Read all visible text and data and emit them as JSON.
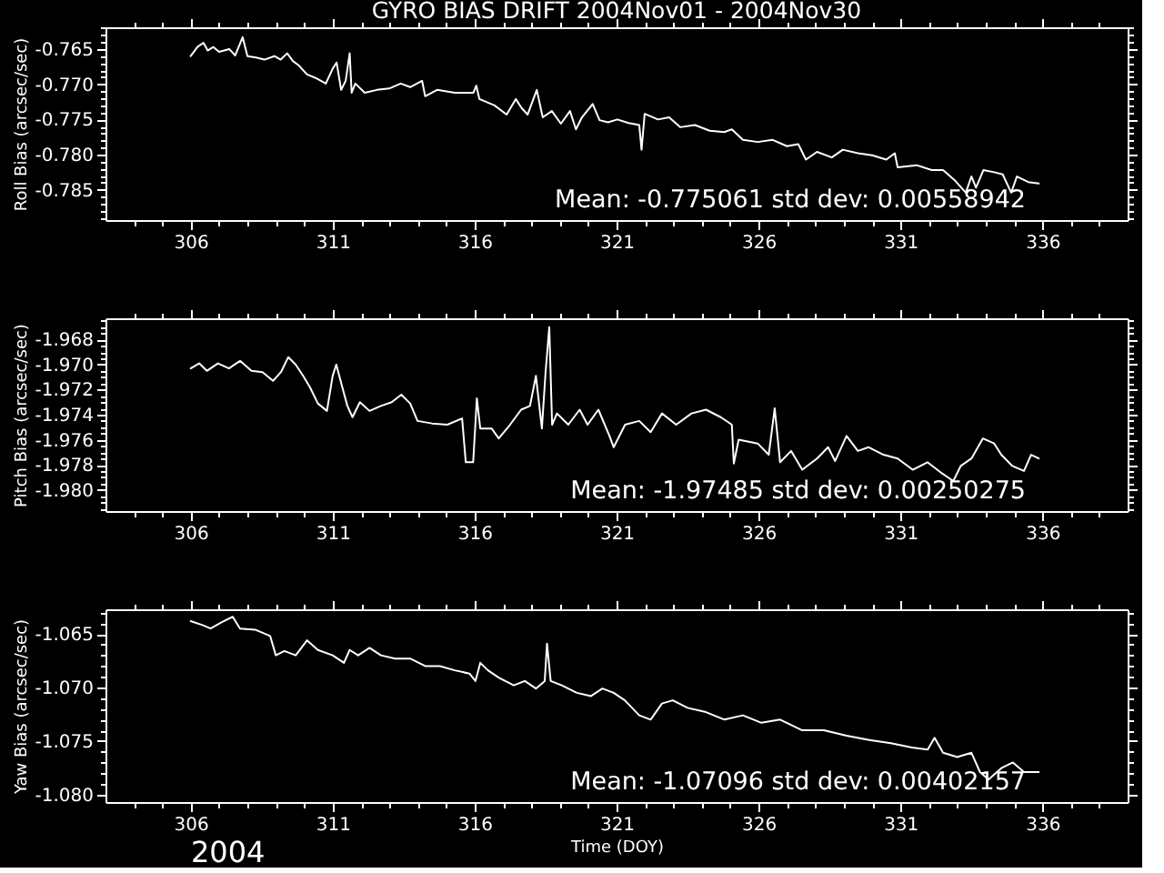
{
  "chart_data": [
    {
      "type": "line",
      "title": "GYRO BIAS DRIFT 2004Nov01 - 2004Nov30",
      "ylabel": "Roll Bias (arcsec/sec)",
      "x": [
        306.0,
        306.24,
        306.45,
        306.6,
        306.8,
        307.0,
        307.36,
        307.57,
        307.83,
        308.0,
        308.3,
        308.6,
        308.95,
        309.17,
        309.4,
        309.6,
        309.8,
        310.1,
        310.4,
        310.76,
        311.0,
        311.14,
        311.3,
        311.46,
        311.6,
        311.67,
        311.8,
        312.13,
        312.56,
        312.99,
        313.4,
        313.73,
        314.15,
        314.26,
        314.68,
        315.3,
        315.96,
        316.06,
        316.17,
        316.7,
        317.13,
        317.45,
        317.66,
        317.87,
        318.19,
        318.4,
        318.72,
        319.04,
        319.36,
        319.57,
        319.78,
        320.16,
        320.4,
        320.7,
        321.03,
        321.42,
        321.8,
        321.88,
        321.99,
        322.46,
        322.85,
        323.24,
        323.76,
        324.28,
        324.8,
        325.06,
        325.45,
        325.97,
        326.5,
        327.0,
        327.4,
        327.67,
        328.06,
        328.58,
        328.97,
        329.5,
        330.0,
        330.5,
        330.8,
        330.9,
        331.57,
        332.1,
        332.5,
        332.9,
        333.3,
        333.5,
        333.66,
        333.92,
        334.3,
        334.6,
        334.9,
        335.1,
        335.5,
        335.87
      ],
      "series": [
        {
          "color": "#ffffff",
          "values": [
            -0.766,
            -0.7647,
            -0.7641,
            -0.7652,
            -0.7647,
            -0.7654,
            -0.765,
            -0.7659,
            -0.7633,
            -0.766,
            -0.7662,
            -0.7665,
            -0.766,
            -0.7665,
            -0.7656,
            -0.7667,
            -0.7673,
            -0.7686,
            -0.7691,
            -0.7699,
            -0.7678,
            -0.7669,
            -0.7708,
            -0.7695,
            -0.7656,
            -0.7712,
            -0.7699,
            -0.7712,
            -0.7708,
            -0.7706,
            -0.7699,
            -0.7704,
            -0.7695,
            -0.7717,
            -0.7708,
            -0.7712,
            -0.7712,
            -0.7702,
            -0.7721,
            -0.773,
            -0.7743,
            -0.7721,
            -0.7734,
            -0.7743,
            -0.7708,
            -0.7747,
            -0.7738,
            -0.7756,
            -0.7738,
            -0.7764,
            -0.7747,
            -0.7728,
            -0.7751,
            -0.7754,
            -0.775,
            -0.7755,
            -0.7758,
            -0.7793,
            -0.7742,
            -0.775,
            -0.7747,
            -0.7761,
            -0.7758,
            -0.7766,
            -0.7768,
            -0.7764,
            -0.7779,
            -0.7782,
            -0.7779,
            -0.7788,
            -0.7785,
            -0.7807,
            -0.7796,
            -0.7804,
            -0.7793,
            -0.7798,
            -0.7801,
            -0.7807,
            -0.7798,
            -0.7818,
            -0.7815,
            -0.7822,
            -0.7822,
            -0.7836,
            -0.7854,
            -0.7831,
            -0.7847,
            -0.7822,
            -0.7825,
            -0.7828,
            -0.7854,
            -0.7831,
            -0.7839,
            -0.7841
          ]
        }
      ],
      "xlim": [
        303,
        339
      ],
      "ylim": [
        -0.7893,
        -0.7619
      ],
      "xticks": [
        {
          "value": 304,
          "label": null
        },
        {
          "value": 305,
          "label": null
        },
        306,
        {
          "value": 307,
          "label": null
        },
        {
          "value": 308,
          "label": null
        },
        {
          "value": 309,
          "label": null
        },
        {
          "value": 310,
          "label": null
        },
        311,
        {
          "value": 312,
          "label": null
        },
        {
          "value": 313,
          "label": null
        },
        {
          "value": 314,
          "label": null
        },
        {
          "value": 315,
          "label": null
        },
        316,
        {
          "value": 317,
          "label": null
        },
        {
          "value": 318,
          "label": null
        },
        {
          "value": 319,
          "label": null
        },
        {
          "value": 320,
          "label": null
        },
        321,
        {
          "value": 322,
          "label": null
        },
        {
          "value": 323,
          "label": null
        },
        {
          "value": 324,
          "label": null
        },
        {
          "value": 325,
          "label": null
        },
        326,
        {
          "value": 327,
          "label": null
        },
        {
          "value": 328,
          "label": null
        },
        {
          "value": 329,
          "label": null
        },
        {
          "value": 330,
          "label": null
        },
        331,
        {
          "value": 332,
          "label": null
        },
        {
          "value": 333,
          "label": null
        },
        {
          "value": 334,
          "label": null
        },
        {
          "value": 335,
          "label": null
        },
        336,
        {
          "value": 337,
          "label": null
        },
        {
          "value": 338,
          "label": null
        }
      ],
      "yticks": [
        {
          "value": -0.789,
          "label": null
        },
        {
          "value": -0.788,
          "label": null
        },
        {
          "value": -0.787,
          "label": null
        },
        {
          "value": -0.786,
          "label": null
        },
        -0.785,
        {
          "value": -0.784,
          "label": null
        },
        {
          "value": -0.783,
          "label": null
        },
        {
          "value": -0.782,
          "label": null
        },
        {
          "value": -0.781,
          "label": null
        },
        {
          "value": -0.78,
          "label": "-0.780"
        },
        {
          "value": -0.779,
          "label": null
        },
        {
          "value": -0.778,
          "label": null
        },
        {
          "value": -0.777,
          "label": null
        },
        {
          "value": -0.776,
          "label": null
        },
        -0.775,
        {
          "value": -0.774,
          "label": null
        },
        {
          "value": -0.773,
          "label": null
        },
        {
          "value": -0.772,
          "label": null
        },
        {
          "value": -0.771,
          "label": null
        },
        {
          "value": -0.77,
          "label": "-0.770"
        },
        {
          "value": -0.769,
          "label": null
        },
        {
          "value": -0.768,
          "label": null
        },
        {
          "value": -0.767,
          "label": null
        },
        {
          "value": -0.766,
          "label": null
        },
        -0.765,
        {
          "value": -0.764,
          "label": null
        },
        {
          "value": -0.763,
          "label": null
        },
        {
          "value": -0.762,
          "label": null
        }
      ],
      "annotations": [
        "Mean: -0.775061 std dev: 0.00558942"
      ]
    },
    {
      "type": "line",
      "ylabel": "Pitch Bias (arcsec/sec)",
      "x": [
        306.0,
        306.3,
        306.57,
        306.96,
        307.35,
        307.74,
        308.14,
        308.53,
        308.9,
        309.18,
        309.44,
        309.7,
        309.96,
        310.2,
        310.48,
        310.8,
        311.0,
        311.13,
        311.34,
        311.52,
        311.7,
        311.96,
        312.3,
        312.7,
        313.08,
        313.42,
        313.73,
        313.99,
        314.5,
        315.04,
        315.56,
        315.69,
        315.95,
        316.08,
        316.2,
        316.6,
        316.85,
        317.25,
        317.64,
        317.95,
        318.16,
        318.37,
        318.5,
        318.63,
        318.73,
        318.9,
        319.3,
        319.7,
        319.98,
        320.36,
        320.75,
        320.9,
        321.3,
        321.8,
        322.2,
        322.6,
        323.1,
        323.64,
        324.15,
        324.67,
        325.06,
        325.13,
        325.3,
        325.97,
        326.36,
        326.57,
        326.76,
        327.15,
        327.54,
        328.06,
        328.45,
        328.7,
        329.1,
        329.5,
        329.88,
        330.4,
        330.9,
        331.43,
        331.95,
        332.47,
        332.86,
        333.12,
        333.5,
        333.9,
        334.3,
        334.55,
        334.94,
        335.35,
        335.6,
        335.87
      ],
      "series": [
        {
          "color": "#ffffff",
          "values": [
            -1.9703,
            -1.9699,
            -1.9705,
            -1.9699,
            -1.9703,
            -1.9697,
            -1.9705,
            -1.9706,
            -1.9713,
            -1.9706,
            -1.9694,
            -1.97,
            -1.9709,
            -1.9718,
            -1.9731,
            -1.9737,
            -1.9709,
            -1.97,
            -1.9718,
            -1.9733,
            -1.9742,
            -1.973,
            -1.9737,
            -1.9733,
            -1.973,
            -1.9724,
            -1.9731,
            -1.9745,
            -1.9747,
            -1.9748,
            -1.9743,
            -1.9778,
            -1.9778,
            -1.9727,
            -1.9751,
            -1.9751,
            -1.9759,
            -1.9748,
            -1.9736,
            -1.9733,
            -1.9709,
            -1.9751,
            -1.9706,
            -1.967,
            -1.9748,
            -1.9739,
            -1.9748,
            -1.9736,
            -1.9748,
            -1.9736,
            -1.9757,
            -1.9766,
            -1.9748,
            -1.9745,
            -1.9754,
            -1.9739,
            -1.9748,
            -1.9739,
            -1.9736,
            -1.9742,
            -1.9748,
            -1.9779,
            -1.976,
            -1.9763,
            -1.9772,
            -1.9735,
            -1.9778,
            -1.9769,
            -1.9784,
            -1.9775,
            -1.9766,
            -1.9777,
            -1.9757,
            -1.9769,
            -1.9766,
            -1.9772,
            -1.9775,
            -1.9784,
            -1.9778,
            -1.9787,
            -1.9793,
            -1.9781,
            -1.9775,
            -1.9759,
            -1.9763,
            -1.9772,
            -1.9781,
            -1.9785,
            -1.9772,
            -1.9775
          ]
        }
      ],
      "xlim": [
        303,
        339
      ],
      "ylim": [
        -1.9817,
        -1.9663
      ],
      "xticks": [
        {
          "value": 304,
          "label": null
        },
        {
          "value": 305,
          "label": null
        },
        306,
        {
          "value": 307,
          "label": null
        },
        {
          "value": 308,
          "label": null
        },
        {
          "value": 309,
          "label": null
        },
        {
          "value": 310,
          "label": null
        },
        311,
        {
          "value": 312,
          "label": null
        },
        {
          "value": 313,
          "label": null
        },
        {
          "value": 314,
          "label": null
        },
        {
          "value": 315,
          "label": null
        },
        316,
        {
          "value": 317,
          "label": null
        },
        {
          "value": 318,
          "label": null
        },
        {
          "value": 319,
          "label": null
        },
        {
          "value": 320,
          "label": null
        },
        321,
        {
          "value": 322,
          "label": null
        },
        {
          "value": 323,
          "label": null
        },
        {
          "value": 324,
          "label": null
        },
        {
          "value": 325,
          "label": null
        },
        326,
        {
          "value": 327,
          "label": null
        },
        {
          "value": 328,
          "label": null
        },
        {
          "value": 329,
          "label": null
        },
        {
          "value": 330,
          "label": null
        },
        331,
        {
          "value": 332,
          "label": null
        },
        {
          "value": 333,
          "label": null
        },
        {
          "value": 334,
          "label": null
        },
        {
          "value": 335,
          "label": null
        },
        336,
        {
          "value": 337,
          "label": null
        },
        {
          "value": 338,
          "label": null
        }
      ],
      "yticks": [
        {
          "value": -1.9815,
          "label": null
        },
        {
          "value": -1.981,
          "label": null
        },
        {
          "value": -1.9805,
          "label": null
        },
        {
          "value": -1.98,
          "label": "-1.980"
        },
        {
          "value": -1.9795,
          "label": null
        },
        {
          "value": -1.979,
          "label": null
        },
        {
          "value": -1.9785,
          "label": null
        },
        -1.978,
        {
          "value": -1.9775,
          "label": null
        },
        {
          "value": -1.977,
          "label": null
        },
        {
          "value": -1.9765,
          "label": null
        },
        -1.976,
        {
          "value": -1.9755,
          "label": null
        },
        {
          "value": -1.975,
          "label": null
        },
        {
          "value": -1.9745,
          "label": null
        },
        -1.974,
        {
          "value": -1.9735,
          "label": null
        },
        {
          "value": -1.973,
          "label": null
        },
        {
          "value": -1.9725,
          "label": null
        },
        -1.972,
        {
          "value": -1.9715,
          "label": null
        },
        {
          "value": -1.971,
          "label": null
        },
        {
          "value": -1.9705,
          "label": null
        },
        {
          "value": -1.97,
          "label": "-1.970"
        },
        {
          "value": -1.9695,
          "label": null
        },
        {
          "value": -1.969,
          "label": null
        },
        {
          "value": -1.9685,
          "label": null
        },
        -1.968,
        {
          "value": -1.9675,
          "label": null
        },
        {
          "value": -1.967,
          "label": null
        },
        {
          "value": -1.9665,
          "label": null
        }
      ],
      "annotations": [
        "Mean: -1.97485 std dev: 0.00250275"
      ]
    },
    {
      "type": "line",
      "xlabel": "Time (DOY)",
      "ylabel": "Yaw Bias (arcsec/sec)",
      "x": [
        306.0,
        306.44,
        306.7,
        307.1,
        307.48,
        307.74,
        308.27,
        308.8,
        309.0,
        309.3,
        309.7,
        310.1,
        310.48,
        311.0,
        311.4,
        311.6,
        311.9,
        312.3,
        312.7,
        313.2,
        313.73,
        314.26,
        314.78,
        315.3,
        315.82,
        316.03,
        316.2,
        316.47,
        316.86,
        317.38,
        317.77,
        318.16,
        318.47,
        318.55,
        318.68,
        319.07,
        319.6,
        320.1,
        320.5,
        320.9,
        321.29,
        321.8,
        322.2,
        322.6,
        322.98,
        323.5,
        324.15,
        324.8,
        325.45,
        326.1,
        326.76,
        327.54,
        328.3,
        329.1,
        329.9,
        330.66,
        331.4,
        331.96,
        332.2,
        332.5,
        333.0,
        333.5,
        333.8,
        334.1,
        334.57,
        334.96,
        335.35,
        335.87
      ],
      "series": [
        {
          "color": "#ffffff",
          "values": [
            -1.0638,
            -1.0642,
            -1.0645,
            -1.0639,
            -1.0634,
            -1.0645,
            -1.0646,
            -1.0652,
            -1.067,
            -1.0666,
            -1.067,
            -1.0656,
            -1.0665,
            -1.067,
            -1.0677,
            -1.0665,
            -1.067,
            -1.0663,
            -1.067,
            -1.0673,
            -1.0673,
            -1.068,
            -1.068,
            -1.0684,
            -1.0687,
            -1.0694,
            -1.0677,
            -1.0684,
            -1.0691,
            -1.0698,
            -1.0694,
            -1.0701,
            -1.0694,
            -1.0659,
            -1.0694,
            -1.0698,
            -1.0705,
            -1.0708,
            -1.0701,
            -1.0705,
            -1.0712,
            -1.0726,
            -1.073,
            -1.0715,
            -1.0712,
            -1.0719,
            -1.0723,
            -1.073,
            -1.0726,
            -1.0733,
            -1.073,
            -1.074,
            -1.074,
            -1.0745,
            -1.0749,
            -1.0752,
            -1.0756,
            -1.0758,
            -1.0747,
            -1.0761,
            -1.0765,
            -1.0761,
            -1.0779,
            -1.0786,
            -1.0775,
            -1.077,
            -1.0779,
            -1.0779
          ]
        }
      ],
      "xlim": [
        303,
        339
      ],
      "ylim": [
        -1.0807,
        -1.0627
      ],
      "xticks": [
        {
          "value": 304,
          "label": null
        },
        {
          "value": 305,
          "label": null
        },
        306,
        {
          "value": 307,
          "label": null
        },
        {
          "value": 308,
          "label": null
        },
        {
          "value": 309,
          "label": null
        },
        {
          "value": 310,
          "label": null
        },
        311,
        {
          "value": 312,
          "label": null
        },
        {
          "value": 313,
          "label": null
        },
        {
          "value": 314,
          "label": null
        },
        {
          "value": 315,
          "label": null
        },
        316,
        {
          "value": 317,
          "label": null
        },
        {
          "value": 318,
          "label": null
        },
        {
          "value": 319,
          "label": null
        },
        {
          "value": 320,
          "label": null
        },
        321,
        {
          "value": 322,
          "label": null
        },
        {
          "value": 323,
          "label": null
        },
        {
          "value": 324,
          "label": null
        },
        {
          "value": 325,
          "label": null
        },
        326,
        {
          "value": 327,
          "label": null
        },
        {
          "value": 328,
          "label": null
        },
        {
          "value": 329,
          "label": null
        },
        {
          "value": 330,
          "label": null
        },
        331,
        {
          "value": 332,
          "label": null
        },
        {
          "value": 333,
          "label": null
        },
        {
          "value": 334,
          "label": null
        },
        {
          "value": 335,
          "label": null
        },
        336,
        {
          "value": 337,
          "label": null
        },
        {
          "value": 338,
          "label": null
        }
      ],
      "yticks": [
        {
          "value": -1.08,
          "label": "-1.080"
        },
        {
          "value": -1.079,
          "label": null
        },
        {
          "value": -1.078,
          "label": null
        },
        {
          "value": -1.077,
          "label": null
        },
        {
          "value": -1.076,
          "label": null
        },
        -1.075,
        {
          "value": -1.074,
          "label": null
        },
        {
          "value": -1.073,
          "label": null
        },
        {
          "value": -1.072,
          "label": null
        },
        {
          "value": -1.071,
          "label": null
        },
        {
          "value": -1.07,
          "label": "-1.070"
        },
        {
          "value": -1.069,
          "label": null
        },
        {
          "value": -1.068,
          "label": null
        },
        {
          "value": -1.067,
          "label": null
        },
        {
          "value": -1.066,
          "label": null
        },
        -1.065,
        {
          "value": -1.064,
          "label": null
        },
        {
          "value": -1.063,
          "label": null
        }
      ],
      "annotations": [
        "Mean: -1.07096 std dev: 0.00402157",
        "2004"
      ]
    }
  ]
}
